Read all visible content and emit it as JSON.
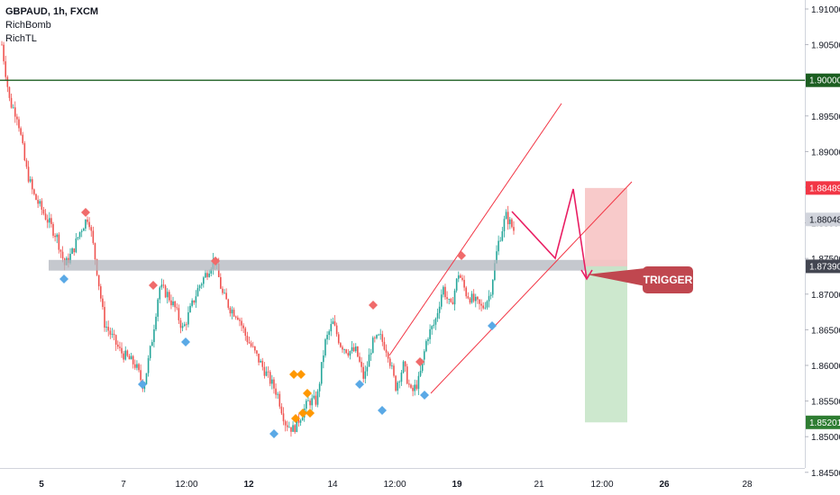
{
  "legend": {
    "symbol": "GBPAUD, 1h, FXCM",
    "indicators": [
      "RichBomb",
      "RichTL"
    ]
  },
  "colors": {
    "up": "#26a69a",
    "down": "#ef5350",
    "green_line": "#1b5e20",
    "trend": "#f23645",
    "zigzag": "#e91e63",
    "sl_zone": "#f7c4c4",
    "tp_zone": "#c8e6c9",
    "resistance_zone": "#b2b5be",
    "bull_marker": "#5aa9e6",
    "bear_marker": "#f06b6b",
    "orange_marker": "#ff9800",
    "trigger_bg": "#c0474f"
  },
  "chart_data": {
    "type": "candlestick",
    "symbol": "GBPAUD",
    "timeframe": "1h",
    "ylim": [
      1.8445,
      1.9115
    ],
    "y_ticks": [
      "1.91000",
      "1.90500",
      "1.90000",
      "1.89500",
      "1.89000",
      "1.88500",
      "1.88000",
      "1.87500",
      "1.87000",
      "1.86500",
      "1.86000",
      "1.85500",
      "1.85000",
      "1.84500"
    ],
    "x_ticks": [
      "5",
      "7",
      "12:00",
      "12",
      "14",
      "12:00",
      "19",
      "21",
      "12:00",
      "26",
      "28"
    ],
    "price_labels": [
      {
        "value": "1.90000",
        "kind": "line"
      },
      {
        "value": "1.88489",
        "kind": "stop"
      },
      {
        "value": "1.88048",
        "kind": "last"
      },
      {
        "value": "1.87390",
        "kind": "entry"
      },
      {
        "value": "1.85201",
        "kind": "target"
      }
    ],
    "horizontal_line": 1.9,
    "resistance_zone": [
      1.8733,
      1.8748
    ],
    "stop_level": 1.88489,
    "entry_level": 1.8739,
    "target_level": 1.85201,
    "annotation": "TRIGGER",
    "price_path": [
      1.905,
      1.897,
      1.895,
      1.888,
      1.884,
      1.882,
      1.88,
      1.878,
      1.874,
      1.876,
      1.879,
      1.881,
      1.874,
      1.866,
      1.864,
      1.862,
      1.861,
      1.86,
      1.857,
      1.863,
      1.871,
      1.87,
      1.868,
      1.865,
      1.868,
      1.871,
      1.873,
      1.875,
      1.87,
      1.868,
      1.867,
      1.864,
      1.862,
      1.86,
      1.858,
      1.856,
      1.852,
      1.851,
      1.853,
      1.855,
      1.855,
      1.863,
      1.866,
      1.863,
      1.862,
      1.862,
      1.858,
      1.863,
      1.864,
      1.862,
      1.857,
      1.86,
      1.856,
      1.858,
      1.864,
      1.866,
      1.871,
      1.868,
      1.873,
      1.87,
      1.869,
      1.868,
      1.87,
      1.877,
      1.881,
      1.879
    ]
  }
}
